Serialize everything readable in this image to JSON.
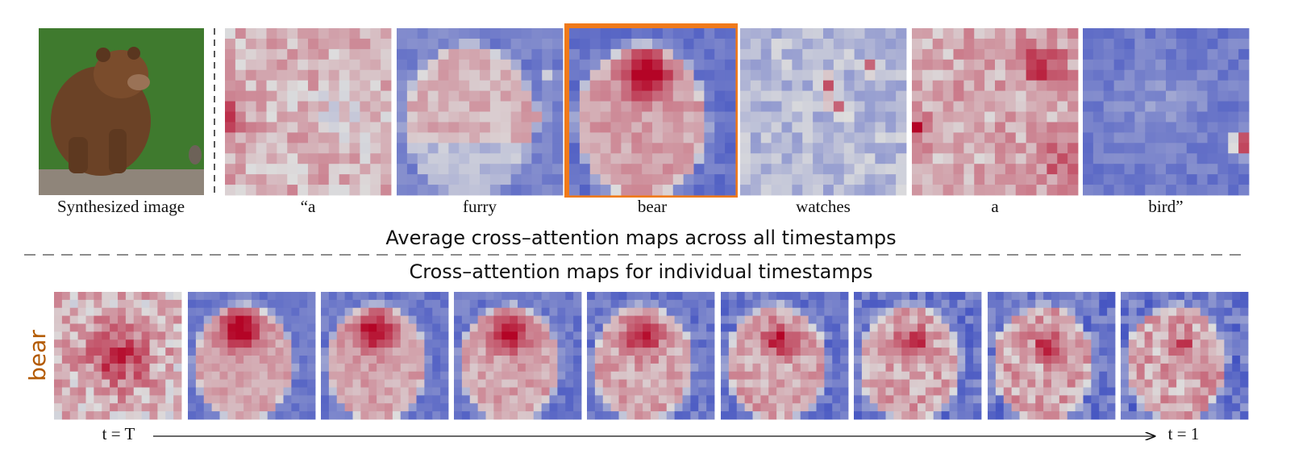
{
  "image_caption": "Synthesized image",
  "token_labels": [
    "“a",
    "furry",
    "bear",
    "watches",
    "a",
    "bird”"
  ],
  "average_title": "Average cross–attention maps across all timestamps",
  "individual_title": "Cross–attention maps for individual  timestamps",
  "row_label": "bear",
  "time_start": "t = T",
  "time_end": "t = 1"
}
